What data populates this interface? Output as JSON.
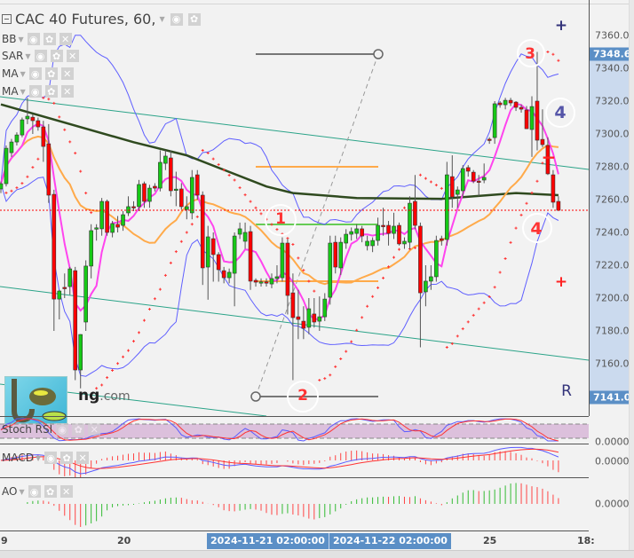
{
  "header": {
    "title": "CAC 40 Futures, 60,"
  },
  "legend": [
    {
      "label": "BB"
    },
    {
      "label": "SAR"
    },
    {
      "label": "MA"
    },
    {
      "label": "MA"
    }
  ],
  "price_axis": {
    "ticks": [
      "7360.0",
      "7340.0",
      "7320.0",
      "7300.0",
      "7280.0",
      "7260.0",
      "7240.0",
      "7220.0",
      "7200.0",
      "7180.0",
      "7160.0"
    ],
    "tick_values": [
      7360,
      7340,
      7320,
      7300,
      7280,
      7260,
      7240,
      7220,
      7200,
      7180,
      7160
    ],
    "high_label": "7348.6",
    "high": 7348.6,
    "low_label": "7141.0",
    "low": 7141.0,
    "last_price": 7253.5
  },
  "colors": {
    "up": "#16c916",
    "down": "#ff0000",
    "bb": "#5f5fff",
    "ma_fast": "#ff44ee",
    "ma_mid": "#ffaa4a",
    "ma_long": "#2f4a1f",
    "sar": "#ff3333",
    "channel": "#2aa388",
    "highlight": "#5b8fc6"
  },
  "annotations": {
    "n1": "1",
    "n2": "2",
    "n3": "3",
    "n4a": "4",
    "n4b": "4",
    "plus_blue": "+",
    "minus_red": "−",
    "plus_red": "+",
    "r": "R"
  },
  "logo": {
    "text": "ng",
    "suffix": ".com"
  },
  "panes": {
    "stoch": "Stoch RSI",
    "macd": "MACD",
    "ao": "AO",
    "zero": "0.0000"
  },
  "time_axis": {
    "labels": [
      "9",
      "20",
      "25",
      "18:"
    ],
    "range_start": "2024-11-21 02:00:00",
    "range_end": "2024-11-22 02:00:00"
  },
  "chart_data": {
    "type": "candlestick",
    "symbol": "CAC 40 Futures",
    "interval": "60",
    "ohlc": [
      [
        7266.5,
        7271,
        7264,
        7269.7
      ],
      [
        7269.7,
        7293,
        7268,
        7291.3
      ],
      [
        7288.6,
        7297,
        7286,
        7295.1
      ],
      [
        7295.1,
        7301,
        7293,
        7299.4
      ],
      [
        7299.4,
        7310,
        7298,
        7308.6
      ],
      [
        7309.2,
        7322,
        7306,
        7310.8
      ],
      [
        7310.2,
        7312,
        7300,
        7308.1
      ],
      [
        7308.1,
        7310,
        7302,
        7304.3
      ],
      [
        7304.3,
        7308,
        7283,
        7292.4
      ],
      [
        7294,
        7306,
        7258,
        7262.7
      ],
      [
        7263.2,
        7266,
        7180,
        7199.4
      ],
      [
        7199.4,
        7205,
        7187,
        7204.3
      ],
      [
        7206.5,
        7215,
        7200,
        7206
      ],
      [
        7207,
        7219,
        7202,
        7217.8
      ],
      [
        7216.7,
        7219,
        7150,
        7156.2
      ],
      [
        7156.2,
        7178,
        7145,
        7177.8
      ],
      [
        7185.4,
        7223,
        7180,
        7219.5
      ],
      [
        7219.5,
        7245,
        7212,
        7241.1
      ],
      [
        7242.2,
        7245,
        7235,
        7242.8
      ],
      [
        7242.2,
        7261,
        7238,
        7258.9
      ],
      [
        7258.9,
        7260,
        7238,
        7240
      ],
      [
        7240,
        7247,
        7237,
        7245.4
      ],
      [
        7244.9,
        7250,
        7240,
        7243.2
      ],
      [
        7244.3,
        7253,
        7241,
        7250.8
      ],
      [
        7251.9,
        7262,
        7250,
        7255.7
      ],
      [
        7255.7,
        7259,
        7253,
        7255.2
      ],
      [
        7255.7,
        7272,
        7253,
        7269.2
      ],
      [
        7269.7,
        7271,
        7255,
        7258.9
      ],
      [
        7258.9,
        7269,
        7255,
        7267
      ],
      [
        7268.1,
        7270,
        7265,
        7267
      ],
      [
        7267,
        7290,
        7265,
        7282.7
      ],
      [
        7282.1,
        7290,
        7278,
        7286.5
      ],
      [
        7285.4,
        7290,
        7262,
        7265.4
      ],
      [
        7265.9,
        7277,
        7256,
        7266.4
      ],
      [
        7266.5,
        7270,
        7254,
        7255.7
      ],
      [
        7254,
        7262,
        7248,
        7255.7
      ],
      [
        7251.9,
        7278,
        7248,
        7273.5
      ],
      [
        7275.1,
        7278,
        7260,
        7262.7
      ],
      [
        7262.7,
        7265,
        7208,
        7218.4
      ],
      [
        7218.9,
        7244,
        7199,
        7237.3
      ],
      [
        7236.2,
        7240,
        7210,
        7226.5
      ],
      [
        7226.5,
        7228,
        7210,
        7217.3
      ],
      [
        7216.7,
        7219,
        7209,
        7212.4
      ],
      [
        7212.4,
        7218,
        7209,
        7215.7
      ],
      [
        7215.1,
        7240,
        7195,
        7237.8
      ],
      [
        7238.9,
        7246,
        7236,
        7242.2
      ],
      [
        7234.6,
        7246,
        7230,
        7240
      ],
      [
        7240.5,
        7244,
        7205,
        7210.3
      ],
      [
        7210.8,
        7212,
        7207,
        7209.7
      ],
      [
        7209.7,
        7212,
        7207,
        7209.9
      ],
      [
        7209.9,
        7212,
        7207,
        7209.7
      ],
      [
        7208.6,
        7215,
        7206,
        7211.9
      ],
      [
        7211.9,
        7220,
        7209,
        7213
      ],
      [
        7212.4,
        7237,
        7210,
        7233.5
      ],
      [
        7233.5,
        7236,
        7190,
        7201.6
      ],
      [
        7203.2,
        7215,
        7150,
        7188.1
      ],
      [
        7188.6,
        7205,
        7175,
        7187
      ],
      [
        7185.9,
        7195,
        7175,
        7181.6
      ],
      [
        7182.2,
        7200,
        7178,
        7193.5
      ],
      [
        7190.3,
        7200,
        7182,
        7185.4
      ],
      [
        7185.9,
        7201,
        7180,
        7188.6
      ],
      [
        7188.6,
        7203,
        7186,
        7199.4
      ],
      [
        7200.5,
        7238,
        7196,
        7233.5
      ],
      [
        7234,
        7238,
        7215,
        7218.9
      ],
      [
        7218.4,
        7237,
        7214,
        7234
      ],
      [
        7233.5,
        7242,
        7230,
        7238.9
      ],
      [
        7238.9,
        7243,
        7235,
        7240.5
      ],
      [
        7239.4,
        7245,
        7236,
        7242.2
      ],
      [
        7242.2,
        7244,
        7234,
        7237.8
      ],
      [
        7231.9,
        7238,
        7229,
        7234.6
      ],
      [
        7231.9,
        7237,
        7228,
        7235.1
      ],
      [
        7235.1,
        7249,
        7232,
        7244.3
      ],
      [
        7244.3,
        7255,
        7238,
        7244
      ],
      [
        7244.3,
        7247,
        7232,
        7239.4
      ],
      [
        7239.4,
        7252,
        7236,
        7243.8
      ],
      [
        7244.3,
        7246,
        7232,
        7233
      ],
      [
        7233,
        7237,
        7230,
        7234.6
      ],
      [
        7234,
        7262,
        7230,
        7257.8
      ],
      [
        7258.9,
        7275,
        7242,
        7244.3
      ],
      [
        7243.8,
        7246,
        7170,
        7203.2
      ],
      [
        7203.8,
        7220,
        7195,
        7210.3
      ],
      [
        7210.3,
        7220,
        7205,
        7213
      ],
      [
        7213,
        7238,
        7210,
        7235.1
      ],
      [
        7236.2,
        7238,
        7232,
        7235.1
      ],
      [
        7235.7,
        7283,
        7232,
        7275.1
      ],
      [
        7274,
        7287,
        7255,
        7261.6
      ],
      [
        7263.2,
        7268,
        7255,
        7265.9
      ],
      [
        7265.4,
        7281,
        7262,
        7278.9
      ],
      [
        7279.5,
        7281,
        7274,
        7277.3
      ],
      [
        7276.7,
        7278,
        7270,
        7271.3
      ],
      [
        7271.3,
        7275,
        7262,
        7271
      ],
      [
        7271.9,
        7282,
        7270,
        7273.5
      ],
      [
        7296.8,
        7298,
        7294,
        7296.5
      ],
      [
        7297.8,
        7320,
        7294,
        7318.4
      ],
      [
        7318.9,
        7320,
        7316,
        7317.8
      ],
      [
        7317.8,
        7322,
        7315,
        7320.5
      ],
      [
        7320.5,
        7322,
        7317,
        7318.9
      ],
      [
        7319.4,
        7320,
        7314,
        7316.2
      ],
      [
        7316.2,
        7318,
        7313,
        7315.1
      ],
      [
        7314.6,
        7317,
        7303,
        7303.2
      ],
      [
        7302.7,
        7323,
        7286,
        7316.7
      ],
      [
        7320,
        7350,
        7290,
        7296.2
      ],
      [
        7296.7,
        7315,
        7292,
        7293.5
      ],
      [
        7293,
        7298,
        7275,
        7275.7
      ],
      [
        7275.1,
        7278,
        7255,
        7258.4
      ],
      [
        7258.9,
        7262,
        7253,
        7253.5
      ]
    ],
    "ma_long": [
      [
        0,
        7318
      ],
      [
        25,
        7295
      ],
      [
        35,
        7287
      ],
      [
        50,
        7268
      ],
      [
        55,
        7264
      ],
      [
        67,
        7261
      ],
      [
        83,
        7260.5
      ],
      [
        97,
        7264
      ],
      [
        105,
        7262.7
      ]
    ],
    "yrange": [
      7141,
      7360
    ]
  }
}
